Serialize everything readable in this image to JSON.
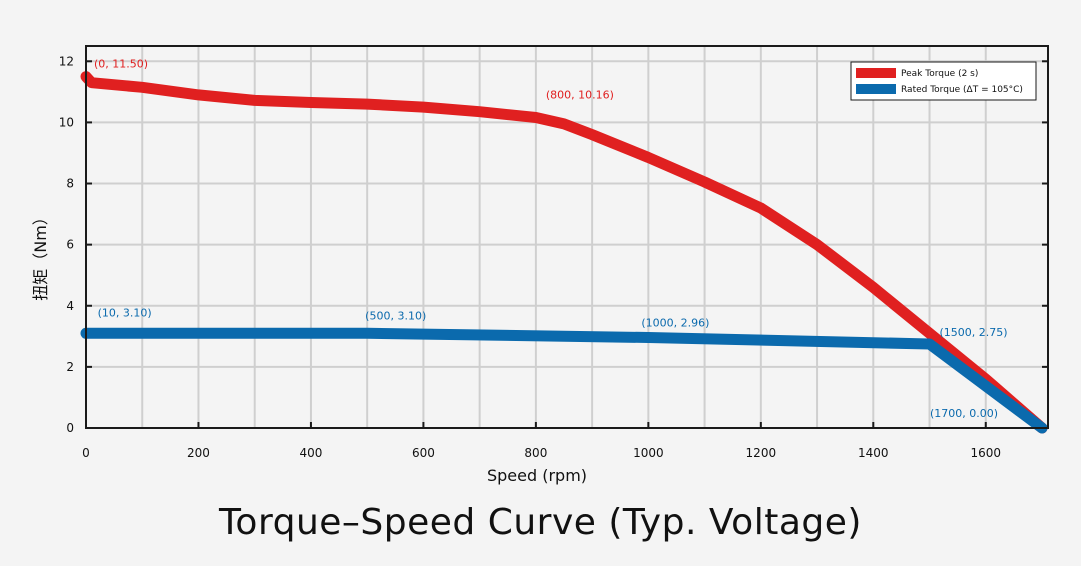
{
  "chart_data": {
    "type": "line",
    "title": "Torque–Speed Curve (Typ. Voltage)",
    "xlabel": "Speed (rpm)",
    "ylabel": "扭矩（Nm）",
    "xlim": [
      0,
      1700
    ],
    "ylim": [
      0,
      12.5
    ],
    "xticks": [
      0,
      200,
      400,
      600,
      800,
      1000,
      1200,
      1400,
      1600
    ],
    "yticks": [
      0,
      2,
      4,
      6,
      8,
      10,
      12
    ],
    "grid": true,
    "legend_position": "top-right",
    "series": [
      {
        "name": "Peak Torque (2 s)",
        "color": "#e02020",
        "points": [
          [
            0,
            11.5
          ],
          [
            10,
            11.3
          ],
          [
            100,
            11.15
          ],
          [
            200,
            10.9
          ],
          [
            300,
            10.72
          ],
          [
            400,
            10.65
          ],
          [
            500,
            10.6
          ],
          [
            600,
            10.5
          ],
          [
            700,
            10.35
          ],
          [
            800,
            10.16
          ],
          [
            850,
            9.95
          ],
          [
            900,
            9.6
          ],
          [
            1000,
            8.85
          ],
          [
            1100,
            8.05
          ],
          [
            1200,
            7.2
          ],
          [
            1300,
            6.0
          ],
          [
            1400,
            4.6
          ],
          [
            1500,
            3.1
          ],
          [
            1600,
            1.6
          ],
          [
            1700,
            0.0
          ]
        ]
      },
      {
        "name": "Rated Torque (ΔT = 105°C)",
        "color": "#0b6aad",
        "points": [
          [
            0,
            3.1
          ],
          [
            10,
            3.1
          ],
          [
            500,
            3.1
          ],
          [
            1000,
            2.96
          ],
          [
            1500,
            2.75
          ],
          [
            1700,
            0.0
          ]
        ]
      }
    ],
    "annotations": [
      {
        "text": "(0, 11.50)",
        "x": 0,
        "y": 11.5,
        "series": 0
      },
      {
        "text": "(800, 10.16)",
        "x": 800,
        "y": 10.16,
        "series": 0
      },
      {
        "text": "(10, 3.10)",
        "x": 10,
        "y": 3.1,
        "series": 1
      },
      {
        "text": "(500, 3.10)",
        "x": 500,
        "y": 3.1,
        "series": 1
      },
      {
        "text": "(1000, 2.96)",
        "x": 1000,
        "y": 2.96,
        "series": 1
      },
      {
        "text": "(1500, 2.75)",
        "x": 1500,
        "y": 2.75,
        "series": 1
      },
      {
        "text": "(1700, 0.00)",
        "x": 1700,
        "y": 0.0,
        "series": 1
      }
    ]
  }
}
